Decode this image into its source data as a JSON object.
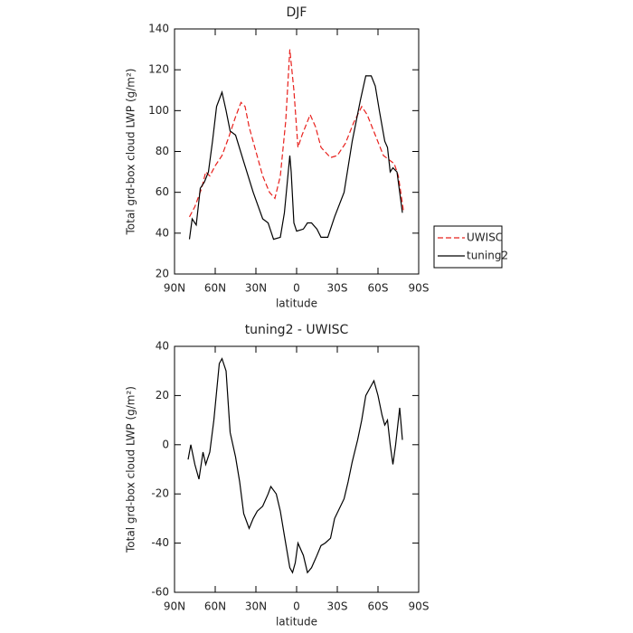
{
  "chart_data": [
    {
      "type": "line",
      "title": "DJF",
      "x_label": "latitude",
      "y_label": "Total grd-box cloud LWP (g/m²)",
      "xlim": [
        90,
        -90
      ],
      "xticks": [
        {
          "value": 90,
          "label": "90N"
        },
        {
          "value": 60,
          "label": "60N"
        },
        {
          "value": 30,
          "label": "30N"
        },
        0,
        {
          "value": -30,
          "label": "30S"
        },
        {
          "value": -60,
          "label": "60S"
        },
        {
          "value": -90,
          "label": "90S"
        }
      ],
      "ylim": [
        20,
        140
      ],
      "yticks": [
        20,
        40,
        60,
        80,
        100,
        120,
        140
      ],
      "grid": false,
      "legend": "right",
      "series": [
        {
          "name": "UWISC",
          "color": "#e8201c",
          "linestyle": "dashed",
          "x": [
            79,
            75,
            70,
            67,
            64,
            60,
            55,
            50,
            45,
            41,
            38,
            35,
            30,
            25,
            20,
            16,
            12,
            8,
            5,
            2,
            -1,
            -4,
            -10,
            -14,
            -18,
            -25,
            -30,
            -36,
            -42,
            -48,
            -52,
            -58,
            -64,
            -68,
            -72,
            -75,
            -79
          ],
          "values": [
            48,
            53,
            62,
            70,
            68,
            73,
            78,
            87,
            97,
            104,
            102,
            92,
            80,
            68,
            60,
            57,
            68,
            95,
            130,
            110,
            82,
            88,
            98,
            92,
            82,
            77,
            78,
            84,
            94,
            102,
            98,
            88,
            78,
            76,
            74,
            68,
            50
          ]
        },
        {
          "name": "tuning2",
          "color": "#000000",
          "linestyle": "solid",
          "x": [
            79,
            77,
            74,
            71,
            68,
            65,
            62,
            59,
            55,
            52,
            49,
            45,
            39,
            32,
            25,
            21,
            17,
            12,
            9,
            5,
            4,
            2,
            0,
            -5,
            -8,
            -11,
            -15,
            -18,
            -23,
            -28,
            -35,
            -41,
            -47,
            -51,
            -55,
            -58,
            -61,
            -65,
            -67,
            -69,
            -71,
            -74,
            -78
          ],
          "values": [
            37,
            47,
            44,
            62,
            65,
            70,
            85,
            102,
            109,
            100,
            90,
            88,
            75,
            60,
            47,
            45,
            37,
            38,
            50,
            78,
            70,
            45,
            41,
            42,
            45,
            45,
            42,
            38,
            38,
            48,
            60,
            85,
            105,
            117,
            117,
            112,
            100,
            85,
            82,
            70,
            72,
            70,
            50
          ]
        }
      ]
    },
    {
      "type": "line",
      "title": "tuning2 - UWISC",
      "x_label": "latitude",
      "y_label": "Total grd-box cloud LWP (g/m²)",
      "xlim": [
        90,
        -90
      ],
      "xticks": [
        {
          "value": 90,
          "label": "90N"
        },
        {
          "value": 60,
          "label": "60N"
        },
        {
          "value": 30,
          "label": "30N"
        },
        0,
        {
          "value": -30,
          "label": "30S"
        },
        {
          "value": -60,
          "label": "60S"
        },
        {
          "value": -90,
          "label": "90S"
        }
      ],
      "ylim": [
        -60,
        40
      ],
      "yticks": [
        -60,
        -40,
        -20,
        0,
        20,
        40
      ],
      "grid": false,
      "color": "#000000",
      "x": [
        80,
        78,
        75,
        72,
        69,
        67,
        64,
        61,
        57,
        55,
        52,
        49,
        45,
        42,
        39,
        35,
        32,
        29,
        25,
        21,
        19,
        15,
        12,
        9,
        5,
        3,
        1,
        -1,
        -5,
        -8,
        -11,
        -15,
        -18,
        -21,
        -25,
        -28,
        -35,
        -38,
        -41,
        -45,
        -48,
        -51,
        -55,
        -57,
        -60,
        -63,
        -65,
        -67,
        -69,
        -71,
        -73,
        -76,
        -78
      ],
      "values": [
        -6,
        0,
        -8,
        -14,
        -3,
        -8,
        -3,
        10,
        33,
        35,
        30,
        5,
        -5,
        -15,
        -28,
        -34,
        -30,
        -27,
        -25,
        -20,
        -17,
        -20,
        -27,
        -37,
        -50,
        -52,
        -48,
        -40,
        -45,
        -52,
        -50,
        -45,
        -41,
        -40,
        -38,
        -30,
        -22,
        -15,
        -7,
        2,
        10,
        20,
        24,
        26,
        20,
        12,
        8,
        10,
        0,
        -8,
        0,
        15,
        2
      ]
    }
  ]
}
